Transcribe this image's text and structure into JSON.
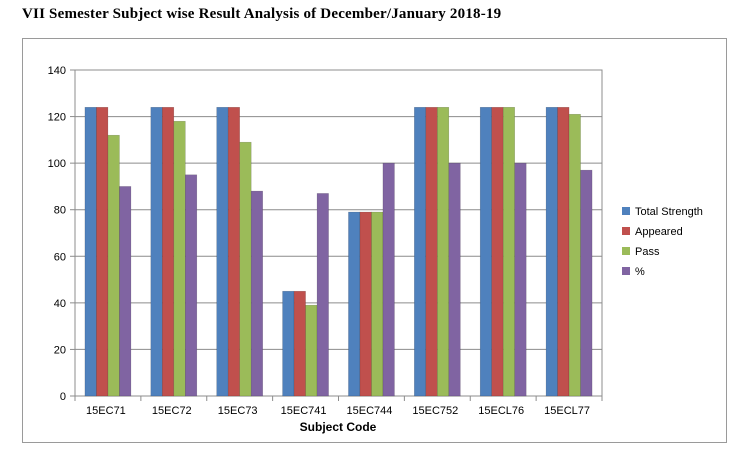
{
  "title": "VII Semester Subject wise Result Analysis of December/January 2018-19",
  "chart_data": {
    "type": "bar",
    "title": "VII Semester Subject wise Result Analysis of December/January 2018-19",
    "xlabel": "Subject Code",
    "ylabel": "",
    "ylim": [
      0,
      140
    ],
    "yticks": [
      0,
      20,
      40,
      60,
      80,
      100,
      120,
      140
    ],
    "grid": true,
    "legend_position": "right",
    "categories": [
      "15EC71",
      "15EC72",
      "15EC73",
      "15EC741",
      "15EC744",
      "15EC752",
      "15ECL76",
      "15ECL77"
    ],
    "series": [
      {
        "name": "Total Strength",
        "color": "#4f81bd",
        "values": [
          124,
          124,
          124,
          45,
          79,
          124,
          124,
          124
        ]
      },
      {
        "name": "Appeared",
        "color": "#c0504d",
        "values": [
          124,
          124,
          124,
          45,
          79,
          124,
          124,
          124
        ]
      },
      {
        "name": "Pass",
        "color": "#9bbb59",
        "values": [
          112,
          118,
          109,
          39,
          79,
          124,
          124,
          121
        ]
      },
      {
        "name": "%",
        "color": "#8064a2",
        "values": [
          90,
          95,
          88,
          87,
          100,
          100,
          100,
          97
        ]
      }
    ]
  }
}
